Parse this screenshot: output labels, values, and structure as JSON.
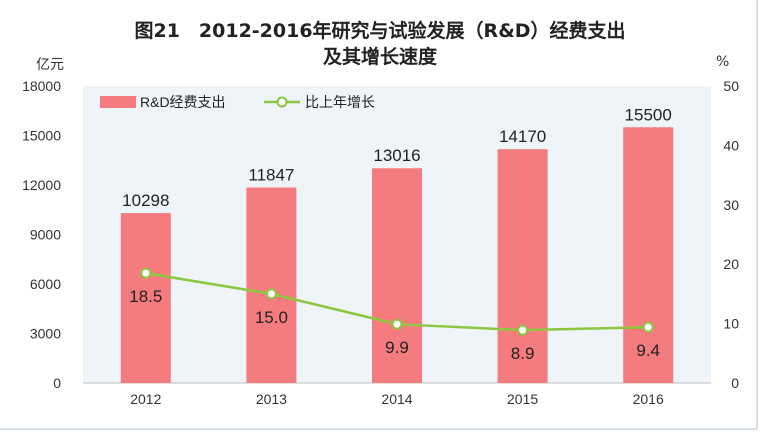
{
  "title_line1": "图21　2012-2016年研究与试验发展（R&D）经费支出",
  "title_line2": "及其增长速度",
  "left_unit": "亿元",
  "right_unit": "%",
  "chart_data": {
    "type": "bar",
    "categories": [
      "2012",
      "2013",
      "2014",
      "2015",
      "2016"
    ],
    "series": [
      {
        "name": "R&D经费支出",
        "type": "bar",
        "axis": "left",
        "values": [
          10298,
          11847,
          13016,
          14170,
          15500
        ],
        "labels": [
          "10298",
          "11847",
          "13016",
          "14170",
          "15500"
        ],
        "color": "#f47c7e"
      },
      {
        "name": "比上年增长",
        "type": "line",
        "axis": "right",
        "values": [
          18.5,
          15.0,
          9.9,
          8.9,
          9.4
        ],
        "labels": [
          "18.5",
          "15.0",
          "9.9",
          "8.9",
          "9.4"
        ],
        "color": "#8dc63f"
      }
    ],
    "y_left": {
      "range": [
        0,
        18000
      ],
      "ticks": [
        "0",
        "3000",
        "6000",
        "9000",
        "12000",
        "15000",
        "18000"
      ]
    },
    "y_right": {
      "range": [
        0,
        50
      ],
      "ticks": [
        "0",
        "10",
        "20",
        "30",
        "40",
        "50"
      ]
    },
    "legend_position": "top-left",
    "plot_background": "#eef4f8",
    "grid": false
  }
}
